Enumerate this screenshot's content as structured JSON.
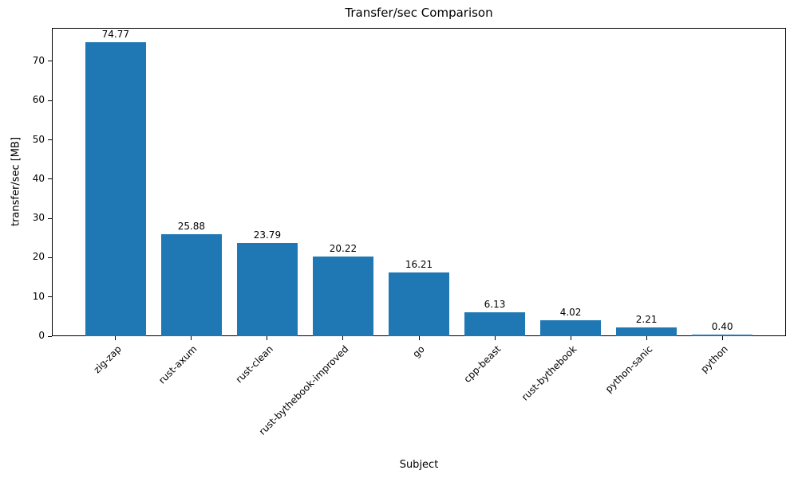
{
  "chart_data": {
    "type": "bar",
    "title": "Transfer/sec Comparison",
    "xlabel": "Subject",
    "ylabel": "transfer/sec [MB]",
    "categories": [
      "zig-zap",
      "rust-axum",
      "rust-clean",
      "rust-bythebook-improved",
      "go",
      "cpp-beast",
      "rust-bythebook",
      "python-sanic",
      "python"
    ],
    "values": [
      74.77,
      25.88,
      23.79,
      20.22,
      16.21,
      6.13,
      4.02,
      2.21,
      0.4
    ],
    "value_labels": [
      "74.77",
      "25.88",
      "23.79",
      "20.22",
      "16.21",
      "6.13",
      "4.02",
      "2.21",
      "0.40"
    ],
    "ylim": [
      0,
      78.5
    ],
    "yticks": [
      0,
      10,
      20,
      30,
      40,
      50,
      60,
      70
    ],
    "bar_color": "#1f77b4",
    "grid": false
  }
}
